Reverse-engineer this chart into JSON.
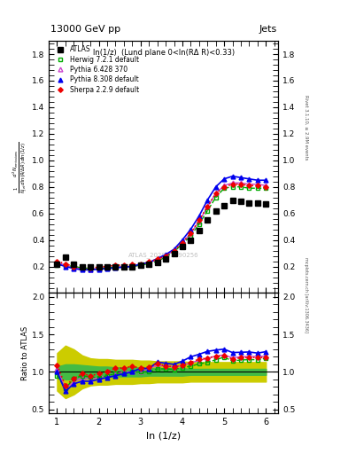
{
  "title_top": "13000 GeV pp",
  "title_right": "Jets",
  "subplot_title": "ln(1/z)  (Lund plane 0<ln(RΔ R)<0.33)",
  "watermark": "ATLAS_2020_I1790256",
  "right_label_top": "Rivet 3.1.10, ≥ 2.9M events",
  "right_label_bottom": "mcplots.cern.ch [arXiv:1306.3436]",
  "xlabel": "ln (1/z)",
  "ylabel_main": "$\\frac{1}{N_{jet}}\\frac{d^2 N_{emissions}}{d\\ln(R/\\Delta R)\\,d\\ln(1/z)}$",
  "ylabel_ratio": "Ratio to ATLAS",
  "ylim_main": [
    0.0,
    1.9
  ],
  "ylim_ratio": [
    0.45,
    2.05
  ],
  "xlim": [
    0.8,
    6.3
  ],
  "x_ticks": [
    1,
    2,
    3,
    4,
    5,
    6
  ],
  "atlas_x": [
    1.0,
    1.2,
    1.4,
    1.6,
    1.8,
    2.0,
    2.2,
    2.4,
    2.6,
    2.8,
    3.0,
    3.2,
    3.4,
    3.6,
    3.8,
    4.0,
    4.2,
    4.4,
    4.6,
    4.8,
    5.0,
    5.2,
    5.4,
    5.6,
    5.8,
    6.0
  ],
  "atlas_y": [
    0.22,
    0.27,
    0.22,
    0.2,
    0.2,
    0.2,
    0.2,
    0.2,
    0.2,
    0.2,
    0.21,
    0.22,
    0.23,
    0.26,
    0.3,
    0.35,
    0.4,
    0.47,
    0.55,
    0.62,
    0.66,
    0.7,
    0.69,
    0.68,
    0.68,
    0.67
  ],
  "herwig_x": [
    1.0,
    1.2,
    1.4,
    1.6,
    1.8,
    2.0,
    2.2,
    2.4,
    2.6,
    2.8,
    3.0,
    3.2,
    3.4,
    3.6,
    3.8,
    4.0,
    4.2,
    4.4,
    4.6,
    4.8,
    5.0,
    5.2,
    5.4,
    5.6,
    5.8,
    6.0
  ],
  "herwig_y": [
    0.21,
    0.21,
    0.2,
    0.19,
    0.185,
    0.185,
    0.19,
    0.195,
    0.195,
    0.2,
    0.21,
    0.22,
    0.24,
    0.27,
    0.31,
    0.37,
    0.43,
    0.52,
    0.62,
    0.72,
    0.79,
    0.8,
    0.8,
    0.79,
    0.79,
    0.79
  ],
  "pythia6_x": [
    1.0,
    1.2,
    1.4,
    1.6,
    1.8,
    2.0,
    2.2,
    2.4,
    2.6,
    2.8,
    3.0,
    3.2,
    3.4,
    3.6,
    3.8,
    4.0,
    4.2,
    4.4,
    4.6,
    4.8,
    5.0,
    5.2,
    5.4,
    5.6,
    5.8,
    6.0
  ],
  "pythia6_y": [
    0.23,
    0.21,
    0.19,
    0.185,
    0.18,
    0.185,
    0.19,
    0.195,
    0.2,
    0.2,
    0.21,
    0.23,
    0.25,
    0.28,
    0.32,
    0.38,
    0.45,
    0.54,
    0.65,
    0.75,
    0.81,
    0.83,
    0.83,
    0.82,
    0.82,
    0.81
  ],
  "pythia8_x": [
    1.0,
    1.2,
    1.4,
    1.6,
    1.8,
    2.0,
    2.2,
    2.4,
    2.6,
    2.8,
    3.0,
    3.2,
    3.4,
    3.6,
    3.8,
    4.0,
    4.2,
    4.4,
    4.6,
    4.8,
    5.0,
    5.2,
    5.4,
    5.6,
    5.8,
    6.0
  ],
  "pythia8_y": [
    0.22,
    0.2,
    0.185,
    0.175,
    0.175,
    0.18,
    0.185,
    0.19,
    0.195,
    0.2,
    0.22,
    0.23,
    0.26,
    0.29,
    0.33,
    0.4,
    0.48,
    0.58,
    0.7,
    0.8,
    0.86,
    0.88,
    0.87,
    0.86,
    0.85,
    0.85
  ],
  "sherpa_x": [
    1.0,
    1.2,
    1.4,
    1.6,
    1.8,
    2.0,
    2.2,
    2.4,
    2.6,
    2.8,
    3.0,
    3.2,
    3.4,
    3.6,
    3.8,
    4.0,
    4.2,
    4.4,
    4.6,
    4.8,
    5.0,
    5.2,
    5.4,
    5.6,
    5.8,
    6.0
  ],
  "sherpa_y": [
    0.24,
    0.22,
    0.2,
    0.195,
    0.19,
    0.195,
    0.2,
    0.21,
    0.21,
    0.215,
    0.22,
    0.235,
    0.255,
    0.28,
    0.32,
    0.38,
    0.45,
    0.55,
    0.65,
    0.75,
    0.8,
    0.82,
    0.82,
    0.81,
    0.81,
    0.8
  ],
  "ratio_herwig": [
    0.95,
    0.78,
    0.91,
    0.95,
    0.93,
    0.925,
    0.95,
    0.975,
    0.975,
    1.0,
    1.0,
    1.0,
    1.04,
    1.04,
    1.033,
    1.057,
    1.075,
    1.106,
    1.127,
    1.161,
    1.197,
    1.143,
    1.159,
    1.162,
    1.162,
    1.179
  ],
  "ratio_pythia6": [
    1.045,
    0.778,
    0.864,
    0.925,
    0.9,
    0.925,
    0.95,
    0.975,
    1.0,
    1.0,
    1.0,
    1.045,
    1.087,
    1.077,
    1.067,
    1.086,
    1.125,
    1.149,
    1.182,
    1.21,
    1.227,
    1.186,
    1.203,
    1.206,
    1.206,
    1.209
  ],
  "ratio_pythia8": [
    1.0,
    0.74,
    0.841,
    0.875,
    0.875,
    0.9,
    0.925,
    0.95,
    0.975,
    1.0,
    1.048,
    1.045,
    1.13,
    1.115,
    1.1,
    1.143,
    1.2,
    1.234,
    1.273,
    1.29,
    1.303,
    1.257,
    1.261,
    1.265,
    1.25,
    1.269
  ],
  "ratio_sherpa": [
    1.09,
    0.815,
    0.909,
    0.975,
    0.95,
    0.975,
    1.0,
    1.05,
    1.05,
    1.075,
    1.048,
    1.068,
    1.109,
    1.077,
    1.067,
    1.086,
    1.125,
    1.17,
    1.182,
    1.21,
    1.212,
    1.171,
    1.188,
    1.191,
    1.191,
    1.194
  ],
  "band_green_lo": [
    0.93,
    0.9,
    0.9,
    0.91,
    0.92,
    0.93,
    0.93,
    0.94,
    0.94,
    0.94,
    0.94,
    0.95,
    0.95,
    0.95,
    0.95,
    0.95,
    0.96,
    0.96,
    0.96,
    0.96,
    0.96,
    0.96,
    0.96,
    0.96,
    0.96,
    0.96
  ],
  "band_green_hi": [
    1.07,
    1.1,
    1.1,
    1.09,
    1.08,
    1.07,
    1.07,
    1.06,
    1.06,
    1.06,
    1.06,
    1.05,
    1.05,
    1.05,
    1.05,
    1.05,
    1.04,
    1.04,
    1.04,
    1.04,
    1.04,
    1.04,
    1.04,
    1.04,
    1.04,
    1.04
  ],
  "band_yellow_lo": [
    0.75,
    0.65,
    0.7,
    0.78,
    0.82,
    0.83,
    0.83,
    0.84,
    0.84,
    0.84,
    0.85,
    0.85,
    0.86,
    0.86,
    0.86,
    0.86,
    0.87,
    0.87,
    0.87,
    0.87,
    0.87,
    0.87,
    0.87,
    0.87,
    0.87,
    0.87
  ],
  "band_yellow_hi": [
    1.25,
    1.35,
    1.3,
    1.22,
    1.18,
    1.17,
    1.17,
    1.16,
    1.16,
    1.16,
    1.15,
    1.15,
    1.14,
    1.14,
    1.14,
    1.14,
    1.13,
    1.13,
    1.13,
    1.13,
    1.13,
    1.13,
    1.13,
    1.13,
    1.13,
    1.13
  ],
  "color_herwig": "#00aa00",
  "color_pythia6": "#cc44cc",
  "color_pythia8": "#0000ee",
  "color_sherpa": "#ee0000",
  "color_atlas": "#000000",
  "color_band_green": "#44bb44",
  "color_band_yellow": "#cccc00",
  "main_yticks": [
    0.0,
    0.2,
    0.4,
    0.6,
    0.8,
    1.0,
    1.2,
    1.4,
    1.6,
    1.8
  ],
  "ratio_yticks": [
    0.5,
    1.0,
    1.5,
    2.0
  ]
}
